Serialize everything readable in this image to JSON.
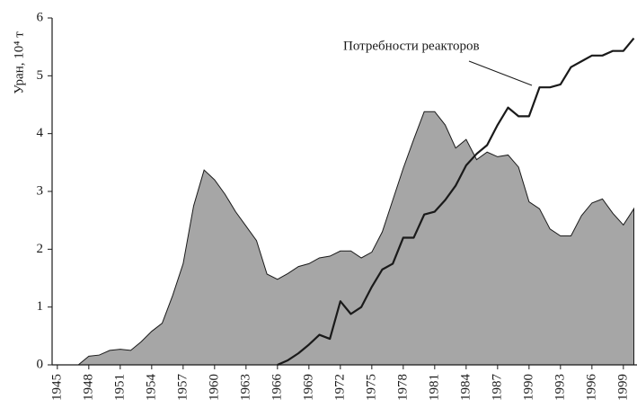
{
  "chart_data": {
    "type": "area_line",
    "ylabel": "Уран, 10⁴ т",
    "annotation": "Потребности реакторов",
    "x": [
      1945,
      1946,
      1947,
      1948,
      1949,
      1950,
      1951,
      1952,
      1953,
      1954,
      1955,
      1956,
      1957,
      1958,
      1959,
      1960,
      1961,
      1962,
      1963,
      1964,
      1965,
      1966,
      1967,
      1968,
      1969,
      1970,
      1971,
      1972,
      1973,
      1974,
      1975,
      1976,
      1977,
      1978,
      1979,
      1980,
      1981,
      1982,
      1983,
      1984,
      1985,
      1986,
      1987,
      1988,
      1989,
      1990,
      1991,
      1992,
      1993,
      1994,
      1995,
      1996,
      1997,
      1998,
      1999,
      2000
    ],
    "series": [
      {
        "color": "#a6a6a6",
        "values": [
          0,
          0,
          0,
          0.15,
          0.17,
          0.25,
          0.27,
          0.25,
          0.4,
          0.58,
          0.72,
          1.2,
          1.75,
          2.75,
          3.37,
          3.2,
          2.95,
          2.65,
          2.4,
          2.15,
          1.57,
          1.48,
          1.58,
          1.7,
          1.75,
          1.85,
          1.88,
          1.97,
          1.97,
          1.85,
          1.95,
          2.3,
          2.85,
          3.4,
          3.9,
          4.38,
          4.38,
          4.15,
          3.75,
          3.9,
          3.55,
          3.68,
          3.6,
          3.63,
          3.42,
          2.82,
          2.7,
          2.35,
          2.23,
          2.23,
          2.58,
          2.8,
          2.87,
          2.62,
          2.42,
          2.7
        ]
      },
      {
        "color": "#1a1a1a",
        "values": [
          null,
          null,
          null,
          null,
          null,
          null,
          null,
          null,
          null,
          null,
          null,
          null,
          null,
          null,
          null,
          null,
          null,
          null,
          null,
          null,
          null,
          0,
          0.08,
          0.2,
          0.35,
          0.52,
          0.45,
          1.1,
          0.88,
          1.0,
          1.35,
          1.65,
          1.75,
          2.2,
          2.2,
          2.6,
          2.65,
          2.85,
          3.1,
          3.45,
          3.65,
          3.8,
          4.15,
          4.45,
          4.3,
          4.3,
          4.8,
          4.8,
          4.85,
          5.15,
          5.25,
          5.35,
          5.35,
          5.43,
          5.43,
          5.65
        ]
      }
    ],
    "xlim": [
      1944.5,
      2000.3
    ],
    "xticks": [
      1945,
      1948,
      1951,
      1954,
      1957,
      1960,
      1963,
      1966,
      1969,
      1972,
      1975,
      1978,
      1981,
      1984,
      1987,
      1990,
      1993,
      1996,
      1999
    ],
    "ylim": [
      0,
      6
    ],
    "yticks": [
      0,
      1,
      2,
      3,
      4,
      5,
      6
    ]
  }
}
